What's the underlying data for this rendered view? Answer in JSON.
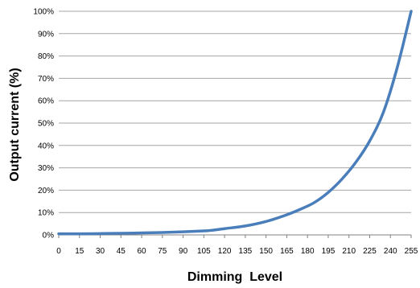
{
  "chart_data": {
    "type": "line",
    "title": "",
    "xlabel": "Dimming  Level",
    "ylabel": "Output current (%)",
    "xlim": [
      0,
      255
    ],
    "ylim": [
      0,
      100
    ],
    "grid": true,
    "legend": "none",
    "line_color": "#4a7ebb",
    "x_ticks": [
      "0",
      "15",
      "30",
      "45",
      "60",
      "75",
      "90",
      "105",
      "120",
      "135",
      "150",
      "165",
      "180",
      "195",
      "210",
      "225",
      "240",
      "255"
    ],
    "y_ticks": [
      "0%",
      "10%",
      "20%",
      "30%",
      "40%",
      "50%",
      "60%",
      "70%",
      "80%",
      "90%",
      "100%"
    ],
    "series": [
      {
        "x": [
          0,
          15,
          30,
          45,
          60,
          75,
          90,
          105,
          110,
          120,
          135,
          150,
          165,
          175,
          185,
          195,
          205,
          215,
          225,
          235,
          245,
          255
        ],
        "y": [
          0.5,
          0.5,
          0.6,
          0.7,
          0.9,
          1.1,
          1.4,
          1.8,
          2.0,
          2.8,
          4.0,
          6.0,
          9.0,
          11.5,
          14.5,
          19.0,
          25.0,
          32.5,
          42.0,
          55.0,
          75.0,
          100.0
        ]
      }
    ]
  }
}
